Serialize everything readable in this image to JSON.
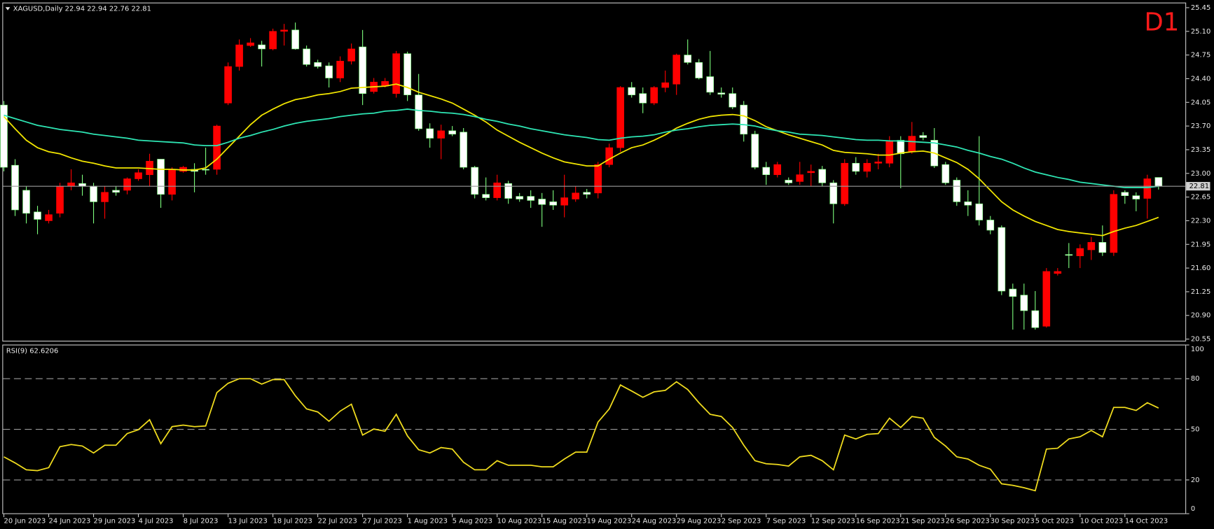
{
  "chart_data": [
    {
      "type": "candlestick",
      "title": "XAGUSD,Daily  22.94 22.94 22.76 22.81",
      "badge": "D1",
      "categories": [
        "20 Jun 2023",
        null,
        null,
        null,
        "24 Jun 2023",
        null,
        null,
        null,
        "29 Jun 2023",
        null,
        null,
        null,
        "4 Jul 2023",
        null,
        null,
        null,
        "8 Jul 2023",
        null,
        null,
        null,
        "13 Jul 2023",
        null,
        null,
        null,
        "18 Jul 2023",
        null,
        null,
        null,
        "22 Jul 2023",
        null,
        null,
        null,
        "27 Jul 2023",
        null,
        null,
        null,
        "1 Aug 2023",
        null,
        null,
        null,
        "5 Aug 2023",
        null,
        null,
        null,
        "10 Aug 2023",
        null,
        null,
        null,
        "15 Aug 2023",
        null,
        null,
        null,
        "19 Aug 2023",
        null,
        null,
        null,
        "24 Aug 2023",
        null,
        null,
        null,
        "29 Aug 2023",
        null,
        null,
        null,
        "2 Sep 2023",
        null,
        null,
        null,
        "7 Sep 2023",
        null,
        null,
        null,
        "12 Sep 2023",
        null,
        null,
        null,
        "16 Sep 2023",
        null,
        null,
        null,
        "21 Sep 2023",
        null,
        null,
        null,
        "26 Sep 2023",
        null,
        null,
        null,
        "30 Sep 2023",
        null,
        null,
        null,
        "5 Oct 2023",
        null,
        null,
        null,
        "10 Oct 2023",
        null,
        null,
        null,
        "14 Oct 2023",
        null,
        null,
        null
      ],
      "open": [
        24.01,
        23.12,
        22.75,
        22.43,
        22.3,
        22.41,
        22.81,
        22.85,
        22.81,
        22.58,
        22.75,
        22.75,
        22.92,
        22.98,
        23.21,
        22.69,
        23.03,
        23.06,
        23.06,
        23.06,
        24.04,
        24.58,
        24.89,
        24.9,
        24.84,
        25.1,
        25.12,
        24.84,
        24.64,
        24.59,
        24.41,
        24.66,
        24.87,
        24.21,
        24.29,
        24.18,
        24.77,
        24.16,
        23.66,
        23.52,
        23.63,
        23.61,
        23.09,
        22.69,
        22.64,
        22.85,
        22.66,
        22.66,
        22.62,
        22.58,
        22.53,
        22.62,
        22.72,
        22.71,
        23.13,
        23.38,
        24.27,
        24.18,
        24.04,
        24.27,
        24.32,
        24.75,
        24.64,
        24.43,
        24.19,
        24.18,
        24.01,
        23.58,
        23.09,
        22.98,
        22.9,
        22.88,
        23.01,
        23.06,
        22.86,
        22.55,
        23.15,
        23.03,
        23.15,
        23.15,
        23.49,
        23.32,
        23.56,
        23.49,
        23.13,
        22.9,
        22.58,
        22.55,
        22.31,
        22.2,
        21.29,
        21.2,
        20.97,
        20.74,
        21.52,
        21.8,
        21.78,
        21.87,
        21.98,
        21.83,
        22.72,
        22.67,
        22.63,
        22.94
      ],
      "high": [
        24.07,
        23.21,
        22.81,
        22.52,
        22.46,
        22.86,
        23.06,
        22.98,
        22.86,
        22.81,
        22.81,
        22.94,
        23.06,
        23.29,
        23.21,
        23.09,
        23.11,
        23.15,
        23.38,
        23.72,
        24.64,
        24.98,
        25.0,
        24.96,
        25.14,
        25.21,
        25.23,
        24.89,
        24.68,
        24.64,
        24.73,
        24.92,
        25.12,
        24.41,
        24.41,
        24.81,
        24.8,
        24.47,
        23.74,
        23.72,
        23.7,
        23.67,
        23.11,
        22.94,
        22.98,
        22.89,
        22.71,
        22.75,
        22.71,
        22.75,
        22.98,
        22.81,
        22.77,
        23.17,
        23.44,
        24.29,
        24.35,
        24.27,
        24.29,
        24.52,
        24.77,
        24.98,
        24.69,
        24.81,
        24.27,
        24.27,
        24.07,
        23.63,
        23.17,
        23.17,
        22.94,
        23.17,
        23.13,
        23.11,
        22.9,
        23.21,
        23.24,
        23.21,
        23.29,
        23.55,
        23.55,
        23.76,
        23.61,
        23.67,
        23.17,
        22.94,
        22.75,
        23.55,
        22.37,
        22.23,
        21.37,
        21.37,
        21.26,
        21.6,
        21.6,
        21.97,
        21.95,
        22.06,
        22.23,
        22.75,
        22.75,
        22.72,
        22.98,
        22.94
      ],
      "low": [
        23.03,
        22.37,
        22.26,
        22.1,
        22.26,
        22.35,
        22.75,
        22.67,
        22.26,
        22.33,
        22.67,
        22.69,
        22.89,
        22.81,
        22.49,
        22.6,
        23.01,
        22.72,
        22.98,
        22.98,
        24.01,
        24.52,
        24.87,
        24.58,
        24.82,
        24.89,
        24.83,
        24.58,
        24.55,
        24.27,
        24.35,
        24.61,
        24.01,
        24.18,
        24.27,
        24.12,
        24.07,
        23.63,
        23.38,
        23.21,
        23.55,
        23.06,
        22.63,
        22.6,
        22.6,
        22.55,
        22.58,
        22.49,
        22.21,
        22.46,
        22.35,
        22.58,
        22.63,
        22.63,
        23.09,
        23.32,
        24.12,
        23.89,
        24.01,
        24.2,
        24.16,
        24.61,
        24.39,
        24.16,
        24.12,
        23.95,
        23.47,
        23.06,
        22.83,
        22.94,
        22.83,
        22.83,
        22.81,
        22.81,
        22.26,
        22.52,
        22.98,
        22.94,
        23.06,
        23.09,
        22.78,
        23.29,
        23.49,
        23.08,
        22.83,
        22.52,
        22.37,
        22.23,
        22.1,
        21.2,
        20.69,
        20.69,
        20.69,
        20.72,
        21.49,
        21.6,
        21.6,
        21.72,
        21.78,
        21.78,
        22.55,
        22.44,
        22.33,
        22.76
      ],
      "close": [
        23.09,
        22.46,
        22.41,
        22.32,
        22.39,
        22.81,
        22.86,
        22.81,
        22.58,
        22.72,
        22.72,
        22.92,
        23.01,
        23.18,
        22.69,
        23.06,
        23.09,
        23.03,
        23.05,
        23.7,
        24.58,
        24.9,
        24.93,
        24.84,
        25.1,
        25.12,
        24.84,
        24.61,
        24.58,
        24.41,
        24.66,
        24.84,
        24.18,
        24.35,
        24.36,
        24.77,
        24.16,
        23.66,
        23.52,
        23.63,
        23.58,
        23.09,
        22.69,
        22.64,
        22.86,
        22.63,
        22.62,
        22.6,
        22.54,
        22.53,
        22.64,
        22.71,
        22.69,
        23.13,
        23.38,
        24.27,
        24.16,
        24.04,
        24.27,
        24.34,
        24.75,
        24.64,
        24.41,
        24.2,
        24.17,
        23.98,
        23.58,
        23.09,
        22.98,
        23.13,
        22.86,
        22.98,
        23.03,
        22.86,
        22.55,
        23.15,
        23.03,
        23.15,
        23.17,
        23.47,
        23.29,
        23.55,
        23.53,
        23.11,
        22.86,
        22.58,
        22.53,
        22.31,
        22.16,
        21.26,
        21.18,
        20.97,
        20.72,
        21.55,
        21.55,
        21.79,
        21.89,
        21.98,
        21.83,
        22.69,
        22.67,
        22.62,
        22.92,
        22.81
      ],
      "up_color": "#ff0000",
      "down_color": "#ffffff",
      "down_wick_color": "#7cfc7c",
      "series": [
        {
          "color": "#f2e600",
          "values": [
            23.84,
            23.66,
            23.49,
            23.38,
            23.32,
            23.29,
            23.23,
            23.18,
            23.15,
            23.11,
            23.08,
            23.08,
            23.08,
            23.07,
            23.06,
            23.06,
            23.05,
            23.05,
            23.08,
            23.21,
            23.38,
            23.55,
            23.72,
            23.86,
            23.95,
            24.03,
            24.09,
            24.12,
            24.16,
            24.18,
            24.21,
            24.26,
            24.27,
            24.28,
            24.29,
            24.32,
            24.27,
            24.2,
            24.15,
            24.1,
            24.04,
            23.95,
            23.86,
            23.76,
            23.64,
            23.55,
            23.46,
            23.38,
            23.3,
            23.23,
            23.17,
            23.14,
            23.11,
            23.11,
            23.21,
            23.3,
            23.38,
            23.42,
            23.49,
            23.57,
            23.67,
            23.74,
            23.8,
            23.84,
            23.86,
            23.87,
            23.85,
            23.78,
            23.69,
            23.63,
            23.57,
            23.52,
            23.47,
            23.42,
            23.34,
            23.31,
            23.3,
            23.29,
            23.27,
            23.27,
            23.3,
            23.32,
            23.33,
            23.3,
            23.23,
            23.16,
            23.06,
            22.92,
            22.75,
            22.58,
            22.46,
            22.37,
            22.29,
            22.23,
            22.17,
            22.14,
            22.12,
            22.1,
            22.08,
            22.14,
            22.19,
            22.23,
            22.29,
            22.35
          ]
        },
        {
          "color": "#2ee6b4",
          "values": [
            23.86,
            23.81,
            23.76,
            23.71,
            23.68,
            23.65,
            23.63,
            23.61,
            23.58,
            23.56,
            23.54,
            23.52,
            23.49,
            23.48,
            23.47,
            23.46,
            23.45,
            23.42,
            23.41,
            23.41,
            23.46,
            23.52,
            23.56,
            23.61,
            23.65,
            23.7,
            23.74,
            23.77,
            23.79,
            23.81,
            23.84,
            23.86,
            23.88,
            23.89,
            23.92,
            23.93,
            23.95,
            23.93,
            23.92,
            23.9,
            23.89,
            23.87,
            23.84,
            23.8,
            23.77,
            23.73,
            23.7,
            23.66,
            23.63,
            23.6,
            23.57,
            23.55,
            23.53,
            23.5,
            23.49,
            23.52,
            23.54,
            23.55,
            23.57,
            23.61,
            23.64,
            23.66,
            23.69,
            23.71,
            23.72,
            23.73,
            23.72,
            23.7,
            23.66,
            23.63,
            23.61,
            23.58,
            23.57,
            23.56,
            23.54,
            23.52,
            23.5,
            23.49,
            23.49,
            23.48,
            23.48,
            23.47,
            23.46,
            23.45,
            23.42,
            23.39,
            23.34,
            23.3,
            23.25,
            23.21,
            23.15,
            23.08,
            23.02,
            22.98,
            22.94,
            22.91,
            22.87,
            22.85,
            22.83,
            22.81,
            22.79,
            22.79,
            22.79,
            22.81
          ]
        }
      ],
      "last_price": 22.81,
      "ylim": [
        20.52,
        25.52
      ],
      "yticks": [
        25.45,
        {
          "value": 25.1,
          "label": "25.10"
        },
        24.75,
        {
          "value": 24.4,
          "label": "24.40"
        },
        24.05,
        {
          "value": 23.7,
          "label": "23.70"
        },
        23.35,
        {
          "value": 23.0,
          "label": "23.00"
        },
        22.65,
        {
          "value": 22.3,
          "label": "22.30"
        },
        21.95,
        {
          "value": 21.6,
          "label": "21.60"
        },
        21.25,
        {
          "value": 20.9,
          "label": "20.90"
        },
        20.55
      ],
      "grid": false
    },
    {
      "type": "line",
      "title": "RSI(9) 62.6206",
      "series": [
        {
          "color": "#f0dc1e",
          "values": [
            33.7,
            30.1,
            26,
            25.5,
            27.3,
            39.7,
            41,
            40.1,
            36,
            40.6,
            40.6,
            47.5,
            49.8,
            55.7,
            41.5,
            51.6,
            52.5,
            51.6,
            52,
            71.8,
            77.3,
            80,
            80,
            76.8,
            79.5,
            79.5,
            69.9,
            62.1,
            60.3,
            54.8,
            60.8,
            64.9,
            46.6,
            50.2,
            48.9,
            58.9,
            46.1,
            37.9,
            36,
            39.2,
            38.3,
            30.5,
            26,
            26,
            31.4,
            28.7,
            28.7,
            28.7,
            27.8,
            27.8,
            32.4,
            36.5,
            36.5,
            54.3,
            62.1,
            76.3,
            72.7,
            69,
            72.2,
            73.1,
            78.2,
            73.6,
            65.8,
            58.9,
            57.6,
            51.1,
            40.6,
            31.4,
            29.6,
            29.2,
            28.2,
            33.7,
            34.6,
            31.4,
            26,
            46.6,
            44.3,
            47,
            47.5,
            56.6,
            51.1,
            57.6,
            56.6,
            45.2,
            40.1,
            33.7,
            32.4,
            28.7,
            26.4,
            17.7,
            16.8,
            15.4,
            13.6,
            38.3,
            38.8,
            44.3,
            45.6,
            49.3,
            45.6,
            63,
            63,
            61.2,
            65.8,
            62.6206
          ]
        }
      ],
      "ylim": [
        0,
        100
      ],
      "yticks": [
        100,
        80,
        50,
        20,
        0
      ],
      "grid": true
    }
  ]
}
